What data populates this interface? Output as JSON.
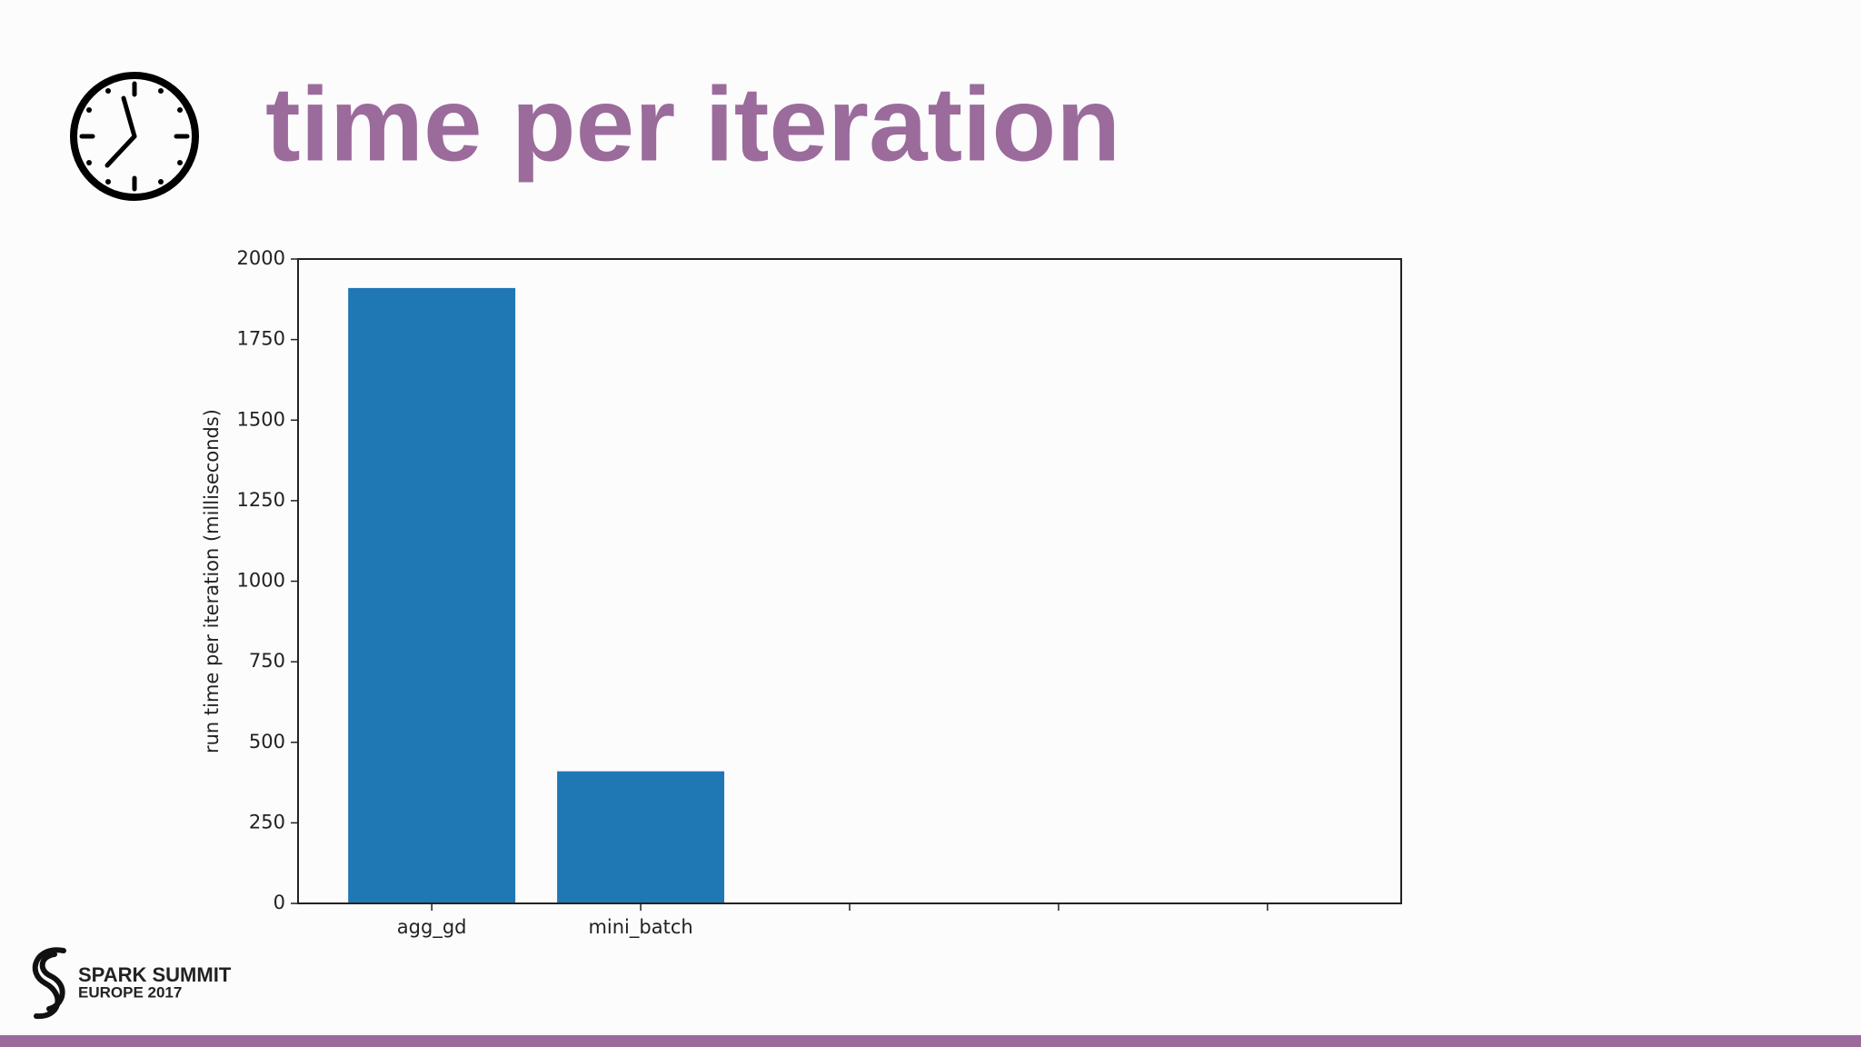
{
  "chart_data": {
    "type": "bar",
    "title": "time per iteration",
    "ylabel": "run time per iteration (milliseconds)",
    "categories": [
      "agg_gd",
      "mini_batch",
      null,
      null,
      null
    ],
    "values": [
      1910,
      410,
      null,
      null,
      null
    ],
    "color": "#1f77b4",
    "ylim": [
      0,
      2000
    ],
    "yticks": [
      0,
      250,
      500,
      750,
      1000,
      1250,
      1500,
      1750,
      2000
    ],
    "grid": false
  },
  "footer": {
    "logo_line1": "SPARK SUMMIT",
    "logo_line2": "EUROPE 2017"
  }
}
